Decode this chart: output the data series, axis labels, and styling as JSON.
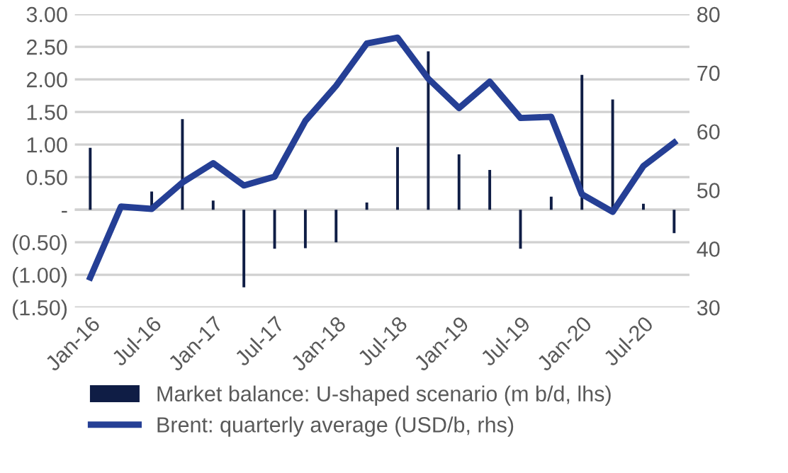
{
  "chart_data": {
    "type": "bar",
    "categories": [
      "Jan-16",
      null,
      "Jul-16",
      null,
      "Jan-17",
      null,
      "Jul-17",
      null,
      "Jan-18",
      null,
      "Jul-18",
      null,
      "Jan-19",
      null,
      "Jul-19",
      null,
      "Jan-20",
      null,
      "Jul-20",
      null
    ],
    "series": [
      {
        "name": "Market balance: U-shaped scenario (m b/d, lhs)",
        "color": "#0f1d45",
        "values": [
          0.95,
          0,
          0.28,
          1.39,
          0.14,
          -1.19,
          -0.6,
          -0.59,
          -0.5,
          0.11,
          0.96,
          2.43,
          0.85,
          0.61,
          -0.6,
          0.2,
          2.07,
          1.69,
          0.09,
          -0.36
        ]
      },
      {
        "name": "Brent: quarterly average (USD/b, rhs)",
        "type": "line",
        "axis": "y2",
        "color": "#253f95",
        "values": [
          35.1,
          47.2,
          46.8,
          51.3,
          54.6,
          50.8,
          52.3,
          61.8,
          67.8,
          75,
          76,
          69,
          64,
          68.5,
          62.3,
          62.5,
          49.3,
          46.3,
          54.1,
          58.1
        ]
      }
    ],
    "ylim": [
      -1.5,
      3
    ],
    "yticks": [
      {
        "value": -1.5,
        "label": "(1.50)"
      },
      {
        "value": -1.0,
        "label": "(1.00)"
      },
      {
        "value": -0.5,
        "label": "(0.50)"
      },
      {
        "value": 0,
        "label": "-"
      },
      {
        "value": 0.5,
        "label": "0.50"
      },
      {
        "value": 1.0,
        "label": "1.00"
      },
      {
        "value": 1.5,
        "label": "1.50"
      },
      {
        "value": 2.0,
        "label": "2.00"
      },
      {
        "value": 2.5,
        "label": "2.50"
      },
      {
        "value": 3.0,
        "label": "3.00"
      }
    ],
    "y2lim": [
      30,
      80
    ],
    "y2ticks": [
      30,
      40,
      50,
      60,
      70,
      80
    ],
    "grid": "y",
    "legend": "bottom"
  }
}
